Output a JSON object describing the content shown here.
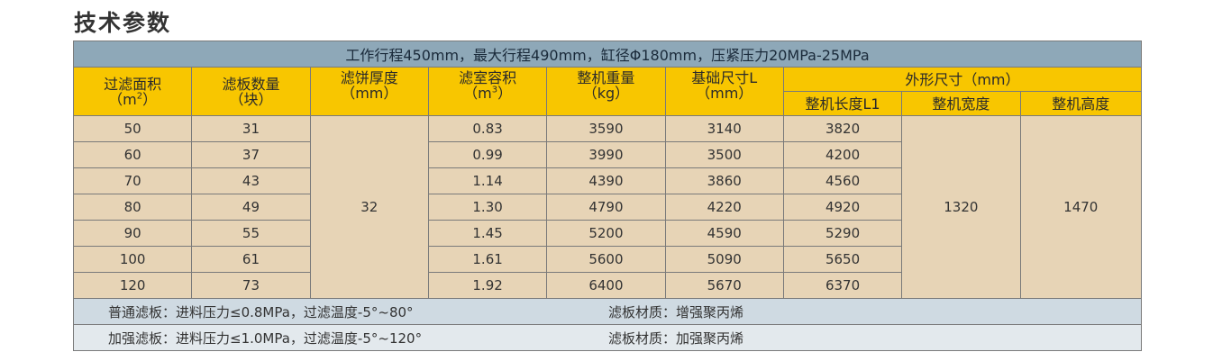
{
  "section_title": "技术参数",
  "banner": "工作行程450mm，最大行程490mm，缸径Φ180mm，压紧压力20MPa-25MPa",
  "headers": {
    "filter_area": "过滤面积",
    "filter_area_unit_pre": "（m",
    "filter_area_unit_sup": "2",
    "filter_area_unit_post": "）",
    "plate_count": "滤板数量",
    "plate_count_unit": "（块）",
    "cake_thickness": "滤饼厚度",
    "cake_thickness_unit": "（mm）",
    "chamber_volume": "滤室容积",
    "chamber_volume_unit_pre": "（m",
    "chamber_volume_unit_sup": "3",
    "chamber_volume_unit_post": "）",
    "weight": "整机重量",
    "weight_unit": "（kg）",
    "foundation": "基础尺寸L",
    "foundation_unit": "（mm）",
    "outline": "外形尺寸（mm）",
    "length": "整机长度L1",
    "width": "整机宽度",
    "height": "整机高度"
  },
  "rows": [
    {
      "area": "50",
      "plates": "31",
      "volume": "0.83",
      "weight": "3590",
      "foundation": "3140",
      "length": "3820"
    },
    {
      "area": "60",
      "plates": "37",
      "volume": "0.99",
      "weight": "3990",
      "foundation": "3500",
      "length": "4200"
    },
    {
      "area": "70",
      "plates": "43",
      "volume": "1.14",
      "weight": "4390",
      "foundation": "3860",
      "length": "4560"
    },
    {
      "area": "80",
      "plates": "49",
      "volume": "1.30",
      "weight": "4790",
      "foundation": "4220",
      "length": "4920"
    },
    {
      "area": "90",
      "plates": "55",
      "volume": "1.45",
      "weight": "5200",
      "foundation": "4590",
      "length": "5290"
    },
    {
      "area": "100",
      "plates": "61",
      "volume": "1.61",
      "weight": "5600",
      "foundation": "5090",
      "length": "5650"
    },
    {
      "area": "120",
      "plates": "73",
      "volume": "1.92",
      "weight": "6400",
      "foundation": "5670",
      "length": "6370"
    }
  ],
  "shared": {
    "thickness": "32",
    "width": "1320",
    "height": "1470"
  },
  "notes": [
    {
      "left": "普通滤板：进料压力≤0.8MPa，过滤温度-5°~80°",
      "right": "滤板材质：增强聚丙烯"
    },
    {
      "left": "加强滤板：进料压力≤1.0MPa，过滤温度-5°~120°",
      "right": "滤板材质：加强聚丙烯"
    }
  ],
  "colors": {
    "banner": "#8ea8b8",
    "header": "#f8c600",
    "body": "#e7d4b6",
    "note1": "#cfdae2",
    "note2": "#e3e9ed"
  }
}
